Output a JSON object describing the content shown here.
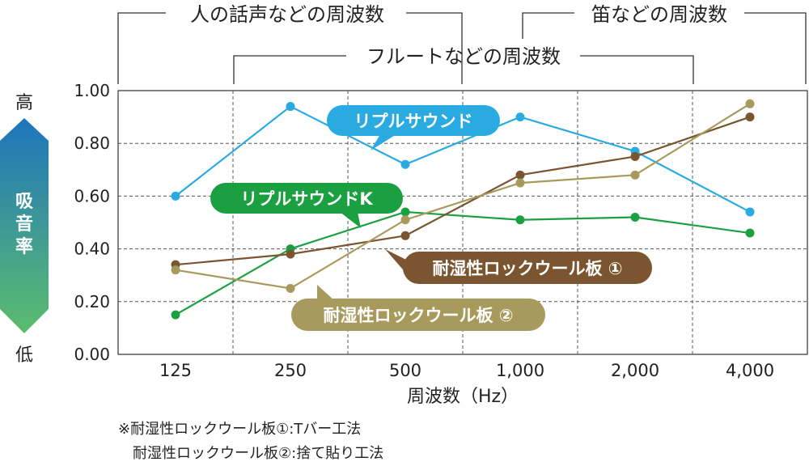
{
  "chart_data": {
    "type": "line",
    "categories": [
      "125",
      "250",
      "500",
      "1,000",
      "2,000",
      "4,000"
    ],
    "xlabel": "周波数（Hz）",
    "ylim": [
      0,
      1
    ],
    "yticks": [
      "0.00",
      "0.20",
      "0.40",
      "0.60",
      "0.80",
      "1.00"
    ],
    "grid": true,
    "ylabel_high": "高",
    "ylabel_low": "低",
    "ylabel_mid": [
      "吸",
      "音",
      "率"
    ],
    "series": [
      {
        "name": "リプルサウンド",
        "color": "#29abe2",
        "values": [
          0.6,
          0.94,
          0.72,
          0.9,
          0.77,
          0.54
        ]
      },
      {
        "name": "リプルサウンドK",
        "color": "#1aa040",
        "values": [
          0.15,
          0.4,
          0.54,
          0.51,
          0.52,
          0.46
        ]
      },
      {
        "name": "耐湿性ロックウール板 ①",
        "color": "#7a5530",
        "values": [
          0.34,
          0.38,
          0.45,
          0.68,
          0.75,
          0.9
        ]
      },
      {
        "name": "耐湿性ロックウール板 ②",
        "color": "#a89a5c",
        "values": [
          0.32,
          0.25,
          0.51,
          0.65,
          0.68,
          0.95
        ]
      }
    ],
    "ranges": [
      {
        "label": "人の話声などの周波数"
      },
      {
        "label": "笛などの周波数"
      },
      {
        "label": "フルートなどの周波数"
      }
    ],
    "footnotes": [
      "※耐湿性ロックウール板①:Tバー工法",
      "　耐湿性ロックウール板②:捨て貼り工法"
    ]
  },
  "colors": {
    "gradient_top": "#1f74bd",
    "gradient_bottom": "#5bbd6e"
  }
}
